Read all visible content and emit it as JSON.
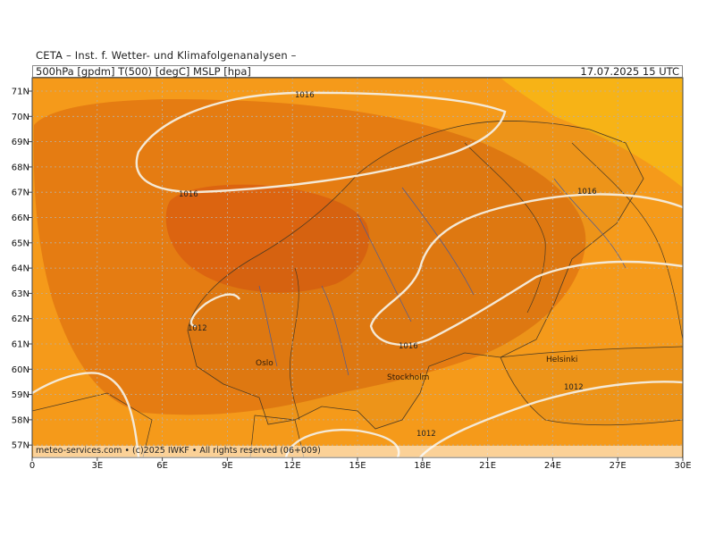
{
  "header": {
    "institute": "CETA – Inst. f. Wetter- und Klimafolgenanalysen –",
    "parameters": "500hPa [gpdm] T(500) [degC] MSLP [hpa]",
    "valid_time": "17.07.2025 15 UTC"
  },
  "credit": "meteo-services.com • (c)2025 IWKF • All rights reserved (06+009)",
  "axes": {
    "lat_labels": [
      "71N",
      "70N",
      "69N",
      "68N",
      "67N",
      "66N",
      "65N",
      "64N",
      "63N",
      "62N",
      "61N",
      "60N",
      "59N",
      "58N",
      "57N"
    ],
    "lon_labels": [
      "0",
      "3E",
      "6E",
      "9E",
      "12E",
      "15E",
      "18E",
      "21E",
      "24E",
      "27E",
      "30E"
    ]
  },
  "cities": {
    "oslo": "Oslo",
    "stockholm": "Stockholm",
    "helsinki": "Helsinki"
  },
  "isobar_labels": {
    "north": "1016",
    "norway_sea": "1016",
    "finland": "1016",
    "baltic": "1016",
    "west_norway": "1012",
    "south_finland": "1012",
    "gotland": "1012"
  },
  "colors": {
    "temp_outer": "#f59a1a",
    "temp_mid": "#e57c12",
    "temp_core": "#dc6410",
    "temp_ne": "#f7b316",
    "isobar": "#f4e9d6",
    "grid": "#b9b0a4",
    "coast": "#4a3a24",
    "river": "#4a5a9a"
  }
}
